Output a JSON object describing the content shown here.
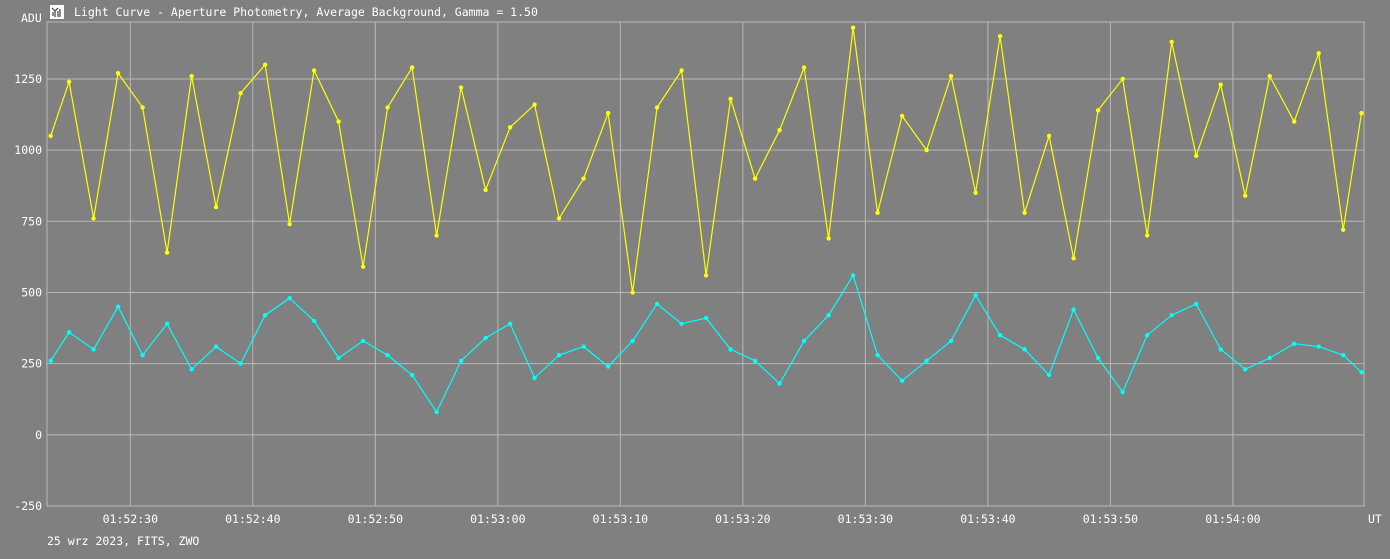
{
  "window": {
    "title": "Light Curve - Aperture Photometry, Average Background, Gamma = 1.50",
    "icon": "light-curve-app-icon",
    "footer": "25 wrz 2023, FITS, ZWO"
  },
  "chart_data": {
    "type": "line",
    "title": "Light Curve - Aperture Photometry, Average Background, Gamma = 1.50",
    "ylabel": "ADU",
    "xlabel": "UT",
    "ylim": [
      -250,
      1450
    ],
    "xlim": [
      "01:52:23.2",
      "01:54:10.7"
    ],
    "yticks": [
      -250,
      0,
      250,
      500,
      750,
      1000,
      1250
    ],
    "ytick_labels": [
      "-250",
      "0",
      "250",
      "500",
      "750",
      "1000",
      "1250"
    ],
    "xticks": [
      "01:52:30",
      "01:52:40",
      "01:52:50",
      "01:53:00",
      "01:53:10",
      "01:53:20",
      "01:53:30",
      "01:53:40",
      "01:53:50",
      "01:54:00"
    ],
    "grid": true,
    "markers": true,
    "series": [
      {
        "color": "#ffff00",
        "x": [
          "01:52:23.5",
          "01:52:25",
          "01:52:27",
          "01:52:29",
          "01:52:31",
          "01:52:33",
          "01:52:35",
          "01:52:37",
          "01:52:39",
          "01:52:41",
          "01:52:43",
          "01:52:45",
          "01:52:47",
          "01:52:49",
          "01:52:51",
          "01:52:53",
          "01:52:55",
          "01:52:57",
          "01:52:59",
          "01:53:01",
          "01:53:03",
          "01:53:05",
          "01:53:07",
          "01:53:09",
          "01:53:11",
          "01:53:13",
          "01:53:15",
          "01:53:17",
          "01:53:19",
          "01:53:21",
          "01:53:23",
          "01:53:25",
          "01:53:27",
          "01:53:29",
          "01:53:31",
          "01:53:33",
          "01:53:35",
          "01:53:37",
          "01:53:39",
          "01:53:41",
          "01:53:43",
          "01:53:45",
          "01:53:47",
          "01:53:49",
          "01:53:51",
          "01:53:53",
          "01:53:55",
          "01:53:57",
          "01:53:59",
          "01:54:01",
          "01:54:03",
          "01:54:05",
          "01:54:07",
          "01:54:09",
          "01:54:10.5"
        ],
        "values": [
          1050,
          1240,
          760,
          1270,
          1150,
          640,
          1260,
          800,
          1200,
          1300,
          740,
          1280,
          1100,
          590,
          1150,
          1290,
          700,
          1220,
          860,
          1080,
          1160,
          760,
          900,
          1130,
          500,
          1150,
          1280,
          560,
          1180,
          900,
          1070,
          1290,
          690,
          1430,
          780,
          1120,
          1000,
          1260,
          850,
          1400,
          780,
          1050,
          620,
          1140,
          1250,
          700,
          1380,
          980,
          1230,
          840,
          1260,
          1100,
          1340,
          720,
          1130
        ]
      },
      {
        "color": "#00ffff",
        "x": [
          "01:52:23.5",
          "01:52:25",
          "01:52:27",
          "01:52:29",
          "01:52:31",
          "01:52:33",
          "01:52:35",
          "01:52:37",
          "01:52:39",
          "01:52:41",
          "01:52:43",
          "01:52:45",
          "01:52:47",
          "01:52:49",
          "01:52:51",
          "01:52:53",
          "01:52:55",
          "01:52:57",
          "01:52:59",
          "01:53:01",
          "01:53:03",
          "01:53:05",
          "01:53:07",
          "01:53:09",
          "01:53:11",
          "01:53:13",
          "01:53:15",
          "01:53:17",
          "01:53:19",
          "01:53:21",
          "01:53:23",
          "01:53:25",
          "01:53:27",
          "01:53:29",
          "01:53:31",
          "01:53:33",
          "01:53:35",
          "01:53:37",
          "01:53:39",
          "01:53:41",
          "01:53:43",
          "01:53:45",
          "01:53:47",
          "01:53:49",
          "01:53:51",
          "01:53:53",
          "01:53:55",
          "01:53:57",
          "01:53:59",
          "01:54:01",
          "01:54:03",
          "01:54:05",
          "01:54:07",
          "01:54:09",
          "01:54:10.5"
        ],
        "values": [
          260,
          360,
          300,
          450,
          280,
          390,
          230,
          310,
          250,
          420,
          480,
          400,
          270,
          330,
          280,
          210,
          80,
          260,
          340,
          390,
          200,
          280,
          310,
          240,
          330,
          460,
          390,
          410,
          300,
          260,
          180,
          330,
          420,
          560,
          280,
          190,
          260,
          330,
          490,
          350,
          300,
          210,
          440,
          270,
          150,
          350,
          420,
          460,
          300,
          230,
          270,
          320,
          310,
          280,
          220
        ]
      }
    ]
  }
}
